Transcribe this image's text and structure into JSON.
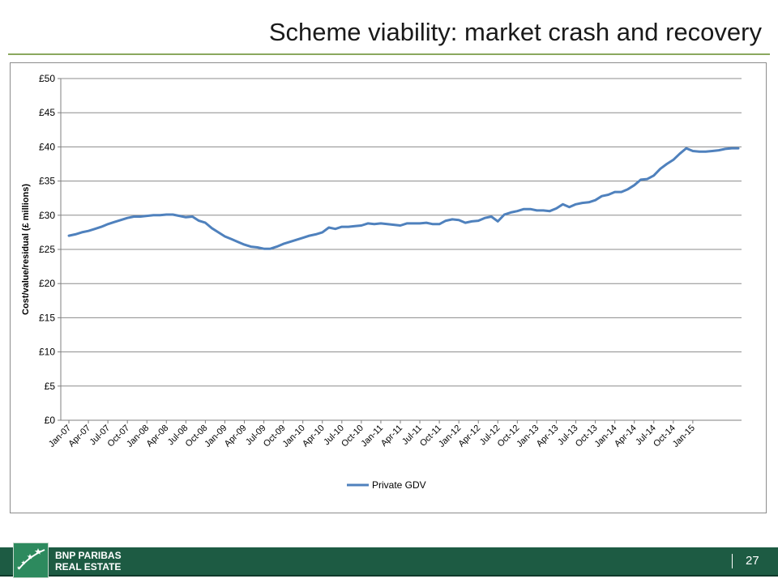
{
  "slide": {
    "title": "Scheme viability: market crash and recovery",
    "page_number": "27"
  },
  "brand": {
    "line1": "BNP PARIBAS",
    "line2": "REAL ESTATE",
    "logo_icon": "bnp-paribas-stars-icon"
  },
  "colors": {
    "accent_rule": "#8aa85e",
    "footer": "#1d5b43",
    "series": "#4f81bd"
  },
  "chart_data": {
    "type": "line",
    "ylabel": "Cost/value/residual (£ millions)",
    "xlabel": "",
    "ylim": [
      0,
      50
    ],
    "y_ticks": [
      "£0",
      "£5",
      "£10",
      "£15",
      "£20",
      "£25",
      "£30",
      "£35",
      "£40",
      "£45",
      "£50"
    ],
    "y_tick_values": [
      0,
      5,
      10,
      15,
      20,
      25,
      30,
      35,
      40,
      45,
      50
    ],
    "grid": true,
    "legend_position": "bottom",
    "x_start": "2007-01",
    "x_tick_labels": [
      "Jan-07",
      "Apr-07",
      "Jul-07",
      "Oct-07",
      "Jan-08",
      "Apr-08",
      "Jul-08",
      "Oct-08",
      "Jan-09",
      "Apr-09",
      "Jul-09",
      "Oct-09",
      "Jan-10",
      "Apr-10",
      "Jul-10",
      "Oct-10",
      "Jan-11",
      "Apr-11",
      "Jul-11",
      "Oct-11",
      "Jan-12",
      "Apr-12",
      "Jul-12",
      "Oct-12",
      "Jan-13",
      "Apr-13",
      "Jul-13",
      "Oct-13",
      "Jan-14",
      "Apr-14",
      "Jul-14",
      "Oct-14",
      "Jan-15"
    ],
    "series": [
      {
        "name": "Private GDV",
        "values": [
          27.0,
          27.2,
          27.5,
          27.7,
          28.0,
          28.3,
          28.7,
          29.0,
          29.3,
          29.6,
          29.8,
          29.8,
          29.9,
          30.0,
          30.0,
          30.1,
          30.1,
          29.9,
          29.7,
          29.8,
          29.2,
          28.9,
          28.1,
          27.5,
          26.9,
          26.5,
          26.1,
          25.7,
          25.4,
          25.3,
          25.1,
          25.1,
          25.4,
          25.8,
          26.1,
          26.4,
          26.7,
          27.0,
          27.2,
          27.5,
          28.2,
          28.0,
          28.3,
          28.3,
          28.4,
          28.5,
          28.8,
          28.7,
          28.8,
          28.7,
          28.6,
          28.5,
          28.8,
          28.8,
          28.8,
          28.9,
          28.7,
          28.7,
          29.2,
          29.4,
          29.3,
          28.9,
          29.1,
          29.2,
          29.6,
          29.8,
          29.1,
          30.1,
          30.4,
          30.6,
          30.9,
          30.9,
          30.7,
          30.7,
          30.6,
          31.0,
          31.6,
          31.2,
          31.6,
          31.8,
          31.9,
          32.2,
          32.8,
          33.0,
          33.4,
          33.4,
          33.8,
          34.4,
          35.2,
          35.3,
          35.8,
          36.8,
          37.5,
          38.1,
          39.0,
          39.8,
          39.4,
          39.3,
          39.3,
          39.4,
          39.5,
          39.7,
          39.8,
          39.8
        ]
      }
    ]
  }
}
